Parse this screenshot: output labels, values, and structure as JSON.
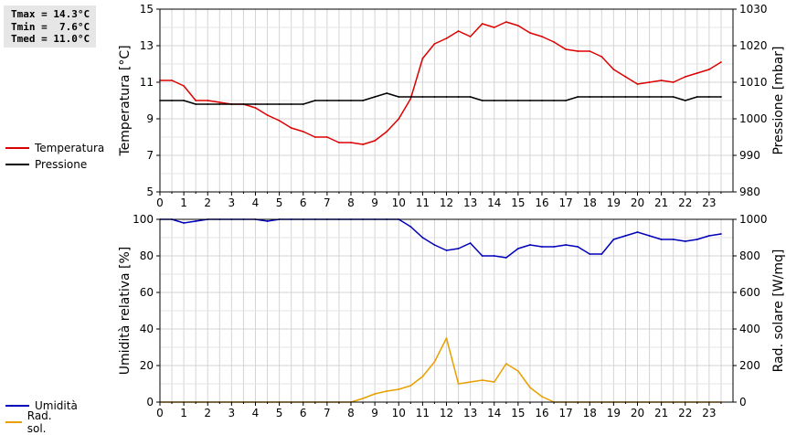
{
  "stats": {
    "tmax": "Tmax = 14.3°C",
    "tmin": "Tmin =  7.6°C",
    "tmed": "Tmed = 11.0°C"
  },
  "legend_top": [
    {
      "label": "Temperatura",
      "color": "#dd0000"
    },
    {
      "label": "Pressione",
      "color": "#000000"
    }
  ],
  "legend_bottom": [
    {
      "label": "Umidità",
      "color": "#0000bb"
    },
    {
      "label": "Rad. sol.",
      "color": "#e8a000"
    }
  ],
  "chart_data": [
    {
      "type": "line",
      "xlabel": "",
      "xlim": [
        0,
        24
      ],
      "xticks": [
        "0",
        "1",
        "2",
        "3",
        "4",
        "5",
        "6",
        "7",
        "8",
        "9",
        "10",
        "11",
        "12",
        "13",
        "14",
        "15",
        "16",
        "17",
        "18",
        "19",
        "20",
        "21",
        "22",
        "23"
      ],
      "ylabel": "Temperatura [°C]",
      "ylim": [
        5,
        15
      ],
      "yticks": [
        "5",
        "7",
        "9",
        "11",
        "13",
        "15"
      ],
      "y2label": "Pressione [mbar]",
      "y2lim": [
        980,
        1030
      ],
      "y2ticks": [
        "980",
        "990",
        "1000",
        "1010",
        "1020",
        "1030"
      ],
      "grid": true,
      "series": [
        {
          "name": "Temperatura",
          "color": "#dd0000",
          "axis": "left",
          "x": [
            0,
            0.5,
            1,
            1.5,
            2,
            2.5,
            3,
            3.5,
            4,
            4.5,
            5,
            5.5,
            6,
            6.5,
            7,
            7.5,
            8,
            8.5,
            9,
            9.5,
            10,
            10.5,
            11,
            11.5,
            12,
            12.5,
            13,
            13.5,
            14,
            14.5,
            15,
            15.5,
            16,
            16.5,
            17,
            17.5,
            18,
            18.5,
            19,
            19.5,
            20,
            20.5,
            21,
            21.5,
            22,
            22.5,
            23,
            23.5
          ],
          "y": [
            11.1,
            11.1,
            10.8,
            10.0,
            10.0,
            9.9,
            9.8,
            9.8,
            9.6,
            9.2,
            8.9,
            8.5,
            8.3,
            8.0,
            8.0,
            7.7,
            7.7,
            7.6,
            7.8,
            8.3,
            9.0,
            10.1,
            12.3,
            13.1,
            13.4,
            13.8,
            13.5,
            14.2,
            14.0,
            14.3,
            14.1,
            13.7,
            13.5,
            13.2,
            12.8,
            12.7,
            12.7,
            12.4,
            11.7,
            11.3,
            10.9,
            11.0,
            11.1,
            11.0,
            11.3,
            11.5,
            11.7,
            12.1
          ]
        },
        {
          "name": "Pressione",
          "color": "#000000",
          "axis": "right",
          "x": [
            0,
            0.5,
            1,
            1.5,
            2,
            2.5,
            3,
            3.5,
            4,
            4.5,
            5,
            5.5,
            6,
            6.5,
            7,
            7.5,
            8,
            8.5,
            9,
            9.5,
            10,
            10.5,
            11,
            11.5,
            12,
            12.5,
            13,
            13.5,
            14,
            14.5,
            15,
            15.5,
            16,
            16.5,
            17,
            17.5,
            18,
            18.5,
            19,
            19.5,
            20,
            20.5,
            21,
            21.5,
            22,
            22.5,
            23,
            23.5
          ],
          "y": [
            1005,
            1005,
            1005,
            1004,
            1004,
            1004,
            1004,
            1004,
            1004,
            1004,
            1004,
            1004,
            1004,
            1005,
            1005,
            1005,
            1005,
            1005,
            1006,
            1007,
            1006,
            1006,
            1006,
            1006,
            1006,
            1006,
            1006,
            1005,
            1005,
            1005,
            1005,
            1005,
            1005,
            1005,
            1005,
            1006,
            1006,
            1006,
            1006,
            1006,
            1006,
            1006,
            1006,
            1006,
            1005,
            1006,
            1006,
            1006
          ]
        }
      ]
    },
    {
      "type": "line",
      "xlabel": "",
      "xlim": [
        0,
        24
      ],
      "xticks": [
        "0",
        "1",
        "2",
        "3",
        "4",
        "5",
        "6",
        "7",
        "8",
        "9",
        "10",
        "11",
        "12",
        "13",
        "14",
        "15",
        "16",
        "17",
        "18",
        "19",
        "20",
        "21",
        "22",
        "23"
      ],
      "ylabel": "Umidità relativa [%]",
      "ylim": [
        0,
        100
      ],
      "yticks": [
        "0",
        "20",
        "40",
        "60",
        "80",
        "100"
      ],
      "y2label": "Rad. solare [W/mq]",
      "y2lim": [
        0,
        1000
      ],
      "y2ticks": [
        "0",
        "200",
        "400",
        "600",
        "800",
        "1000"
      ],
      "grid": true,
      "series": [
        {
          "name": "Umidità",
          "color": "#0000bb",
          "axis": "left",
          "x": [
            0,
            0.5,
            1,
            1.5,
            2,
            2.5,
            3,
            3.5,
            4,
            4.5,
            5,
            5.5,
            6,
            6.5,
            7,
            7.5,
            8,
            8.5,
            9,
            9.5,
            10,
            10.5,
            11,
            11.5,
            12,
            12.5,
            13,
            13.5,
            14,
            14.5,
            15,
            15.5,
            16,
            16.5,
            17,
            17.5,
            18,
            18.5,
            19,
            19.5,
            20,
            20.5,
            21,
            21.5,
            22,
            22.5,
            23,
            23.5
          ],
          "y": [
            100,
            100,
            98,
            99,
            100,
            100,
            100,
            100,
            100,
            99,
            100,
            100,
            100,
            100,
            100,
            100,
            100,
            100,
            100,
            100,
            100,
            96,
            90,
            86,
            83,
            84,
            87,
            80,
            80,
            79,
            84,
            86,
            85,
            85,
            86,
            85,
            81,
            81,
            89,
            91,
            93,
            91,
            89,
            89,
            88,
            89,
            91,
            92
          ]
        },
        {
          "name": "Rad. sol.",
          "color": "#e8a000",
          "axis": "right",
          "x": [
            0,
            0.5,
            1,
            1.5,
            2,
            2.5,
            3,
            3.5,
            4,
            4.5,
            5,
            5.5,
            6,
            6.5,
            7,
            7.5,
            8,
            8.5,
            9,
            9.5,
            10,
            10.5,
            11,
            11.5,
            12,
            12.5,
            13,
            13.5,
            14,
            14.5,
            15,
            15.5,
            16,
            16.5,
            17,
            17.5,
            18,
            18.5,
            19,
            19.5,
            20,
            20.5,
            21,
            21.5,
            22,
            22.5,
            23,
            23.5
          ],
          "y": [
            0,
            0,
            0,
            0,
            0,
            0,
            0,
            0,
            0,
            0,
            0,
            0,
            0,
            0,
            0,
            0,
            0,
            20,
            45,
            60,
            70,
            90,
            140,
            220,
            350,
            100,
            110,
            120,
            110,
            210,
            170,
            80,
            30,
            0,
            0,
            0,
            0,
            0,
            0,
            0,
            0,
            0,
            0,
            0,
            0,
            0,
            0,
            0
          ]
        }
      ]
    }
  ]
}
